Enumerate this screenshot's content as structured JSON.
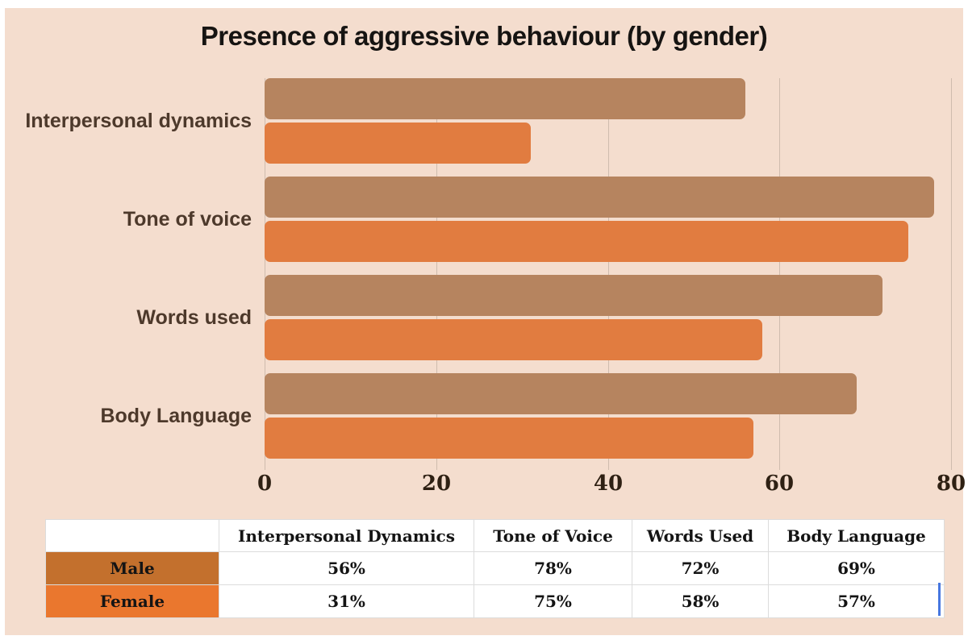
{
  "chart_data": {
    "type": "bar",
    "orientation": "horizontal",
    "title": "Presence of aggressive behaviour (by gender)",
    "categories": [
      "Interpersonal dynamics",
      "Tone of voice",
      "Words used",
      "Body Language"
    ],
    "series": [
      {
        "name": "Male",
        "color": "#b6845f",
        "values": [
          56,
          78,
          72,
          69
        ]
      },
      {
        "name": "Female",
        "color": "#e17c40",
        "values": [
          31,
          75,
          58,
          57
        ]
      }
    ],
    "xlabel": "",
    "ylabel": "",
    "xlim": [
      0,
      80
    ],
    "xticks": [
      0,
      20,
      40,
      60,
      80
    ],
    "grid": "vertical",
    "legend_position": "table-below"
  },
  "table": {
    "headers": [
      "",
      "Interpersonal Dynamics",
      "Tone of Voice",
      "Words Used",
      "Body Language"
    ],
    "rows": [
      {
        "label": "Male",
        "swatch_color": "#c3702d",
        "values": [
          "56%",
          "78%",
          "72%",
          "69%"
        ]
      },
      {
        "label": "Female",
        "swatch_color": "#ea772e",
        "values": [
          "31%",
          "75%",
          "58%",
          "57%"
        ]
      }
    ]
  },
  "colors": {
    "panel_background": "#f4ddce",
    "male_bar": "#b6845f",
    "female_bar": "#e17c40",
    "gridline": "#cfbcae",
    "cursor_line": "#4677e0"
  }
}
